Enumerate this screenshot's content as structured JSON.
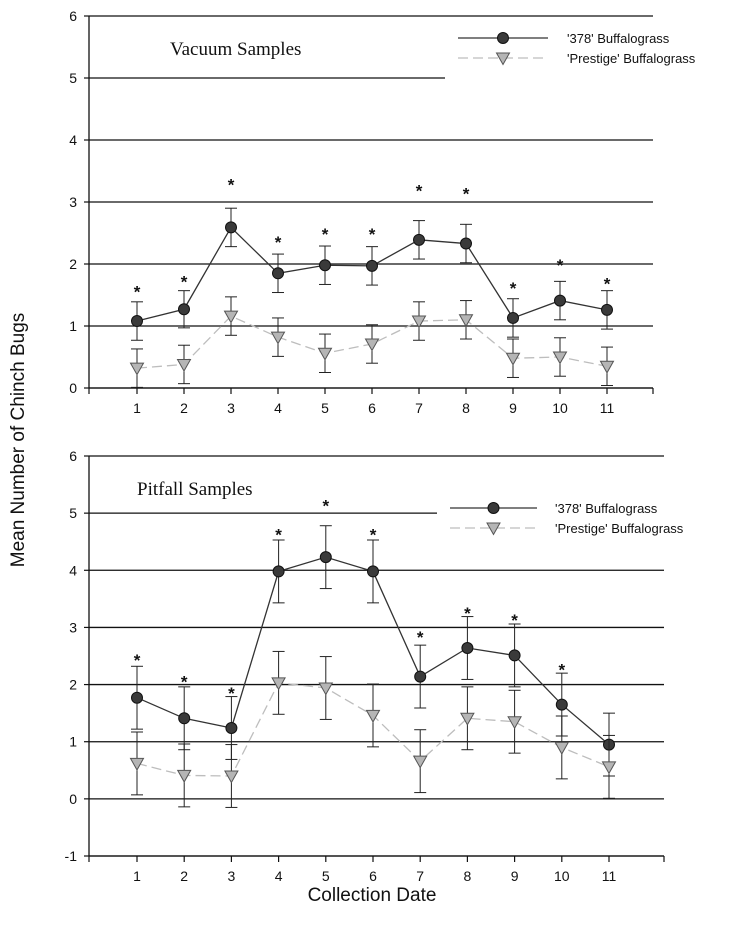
{
  "shared": {
    "ylabel": "Mean Number of Chinch Bugs",
    "xlabel": "Collection Date"
  },
  "chart_data": [
    {
      "type": "line",
      "title": "Vacuum Samples",
      "x": [
        1,
        2,
        3,
        4,
        5,
        6,
        7,
        8,
        9,
        10,
        11
      ],
      "ylim": [
        0,
        6
      ],
      "yticks": [
        0,
        1,
        2,
        3,
        4,
        5,
        6
      ],
      "xticks": [
        "1",
        "2",
        "3",
        "4",
        "5",
        "6",
        "7",
        "8",
        "9",
        "10",
        "11"
      ],
      "grid": "horizontal",
      "legend_position": "top-right",
      "series": [
        {
          "name": "'378' Buffalograss",
          "marker": "circle",
          "line": "solid",
          "color": "#3a3a3a",
          "values": [
            1.08,
            1.27,
            2.59,
            1.85,
            1.98,
            1.97,
            2.39,
            2.33,
            1.13,
            1.41,
            1.26
          ],
          "errors": [
            0.31,
            0.3,
            0.31,
            0.31,
            0.31,
            0.31,
            0.31,
            0.31,
            0.31,
            0.31,
            0.31
          ]
        },
        {
          "name": "'Prestige' Buffalograss",
          "marker": "triangle-down",
          "line": "dashed",
          "color": "#b8b8b8",
          "values": [
            0.32,
            0.38,
            1.16,
            0.82,
            0.56,
            0.71,
            1.08,
            1.1,
            0.48,
            0.5,
            0.35
          ],
          "errors": [
            0.31,
            0.31,
            0.31,
            0.31,
            0.31,
            0.31,
            0.31,
            0.31,
            0.31,
            0.31,
            0.31
          ]
        }
      ],
      "significance": [
        {
          "x": 1,
          "y": 1.62
        },
        {
          "x": 2,
          "y": 1.78
        },
        {
          "x": 3,
          "y": 3.35
        },
        {
          "x": 4,
          "y": 2.42
        },
        {
          "x": 5,
          "y": 2.55
        },
        {
          "x": 6,
          "y": 2.55
        },
        {
          "x": 7,
          "y": 3.25
        },
        {
          "x": 8,
          "y": 3.2
        },
        {
          "x": 9,
          "y": 1.68
        },
        {
          "x": 10,
          "y": 2.05
        },
        {
          "x": 11,
          "y": 1.75
        }
      ]
    },
    {
      "type": "line",
      "title": "Pitfall Samples",
      "x": [
        1,
        2,
        3,
        4,
        5,
        6,
        7,
        8,
        9,
        10,
        11
      ],
      "ylim": [
        -1,
        6
      ],
      "yticks": [
        -1,
        0,
        1,
        2,
        3,
        4,
        5,
        6
      ],
      "xticks": [
        "1",
        "2",
        "3",
        "4",
        "5",
        "6",
        "7",
        "8",
        "9",
        "10",
        "11"
      ],
      "grid": "horizontal",
      "legend_position": "top-right",
      "series": [
        {
          "name": "'378' Buffalograss",
          "marker": "circle",
          "line": "solid",
          "color": "#3a3a3a",
          "values": [
            1.77,
            1.41,
            1.24,
            3.98,
            4.23,
            3.98,
            2.14,
            2.64,
            2.51,
            1.65,
            0.95
          ],
          "errors": [
            0.55,
            0.55,
            0.55,
            0.55,
            0.55,
            0.55,
            0.55,
            0.55,
            0.55,
            0.55,
            0.55
          ]
        },
        {
          "name": "'Prestige' Buffalograss",
          "marker": "triangle-down",
          "line": "dashed",
          "color": "#b8b8b8",
          "values": [
            0.62,
            0.41,
            0.4,
            2.03,
            1.94,
            1.46,
            0.66,
            1.41,
            1.35,
            0.9,
            0.56
          ],
          "errors": [
            0.55,
            0.55,
            0.55,
            0.55,
            0.55,
            0.55,
            0.55,
            0.55,
            0.55,
            0.55,
            0.55
          ]
        }
      ],
      "significance": [
        {
          "x": 1,
          "y": 2.5
        },
        {
          "x": 2,
          "y": 2.12
        },
        {
          "x": 3,
          "y": 1.92
        },
        {
          "x": 4,
          "y": 4.7
        },
        {
          "x": 5,
          "y": 5.2
        },
        {
          "x": 6,
          "y": 4.7
        },
        {
          "x": 7,
          "y": 2.9
        },
        {
          "x": 8,
          "y": 3.32
        },
        {
          "x": 9,
          "y": 3.2
        },
        {
          "x": 10,
          "y": 2.33
        }
      ]
    }
  ]
}
